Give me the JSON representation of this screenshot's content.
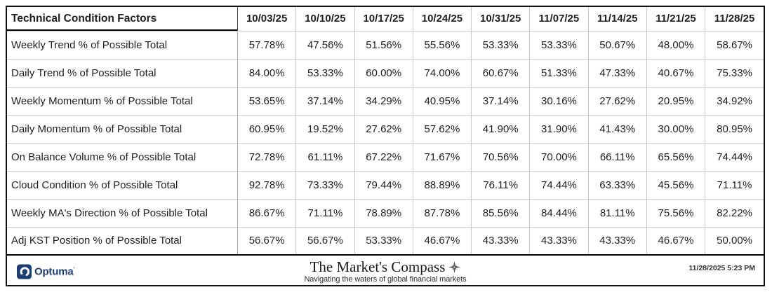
{
  "colors": {
    "frame_border": "#111111",
    "grid_line": "#c9c9c9",
    "header_rule": "#000000",
    "text": "#1f1f1f",
    "brand_navy": "#1c3e70",
    "compass_gray": "#555555"
  },
  "chart_data": {
    "type": "table",
    "title": "Technical Condition Factors",
    "columns": [
      "10/03/25",
      "10/10/25",
      "10/17/25",
      "10/24/25",
      "10/31/25",
      "11/07/25",
      "11/14/25",
      "11/21/25",
      "11/28/25"
    ],
    "rows": [
      {
        "label": "Weekly Trend % of Possible Total",
        "values": [
          "57.78%",
          "47.56%",
          "51.56%",
          "55.56%",
          "53.33%",
          "53.33%",
          "50.67%",
          "48.00%",
          "58.67%"
        ]
      },
      {
        "label": "Daily Trend % of Possible Total",
        "values": [
          "84.00%",
          "53.33%",
          "60.00%",
          "74.00%",
          "60.67%",
          "51.33%",
          "47.33%",
          "40.67%",
          "75.33%"
        ]
      },
      {
        "label": "Weekly Momentum % of Possible Total",
        "values": [
          "53.65%",
          "37.14%",
          "34.29%",
          "40.95%",
          "37.14%",
          "30.16%",
          "27.62%",
          "20.95%",
          "34.92%"
        ]
      },
      {
        "label": "Daily Momentum % of Possible Total",
        "values": [
          "60.95%",
          "19.52%",
          "27.62%",
          "57.62%",
          "41.90%",
          "31.90%",
          "41.43%",
          "30.00%",
          "80.95%"
        ]
      },
      {
        "label": "On Balance Volume % of Possible Total",
        "values": [
          "72.78%",
          "61.11%",
          "67.22%",
          "71.67%",
          "70.56%",
          "70.00%",
          "66.11%",
          "65.56%",
          "74.44%"
        ]
      },
      {
        "label": "Cloud Condition % of Possible Total",
        "values": [
          "92.78%",
          "73.33%",
          "79.44%",
          "88.89%",
          "76.11%",
          "74.44%",
          "63.33%",
          "45.56%",
          "71.11%"
        ]
      },
      {
        "label": "Weekly MA's Direction % of Possible Total",
        "values": [
          "86.67%",
          "71.11%",
          "78.89%",
          "87.78%",
          "85.56%",
          "84.44%",
          "81.11%",
          "75.56%",
          "82.22%"
        ]
      },
      {
        "label": "Adj KST Position % of Possible Total",
        "values": [
          "56.67%",
          "56.67%",
          "53.33%",
          "46.67%",
          "43.33%",
          "43.33%",
          "43.33%",
          "46.67%",
          "50.00%"
        ]
      }
    ]
  },
  "footer": {
    "optuma_label": "Optuma",
    "brand_title": "The Market's Compass",
    "brand_tagline": "Navigating the waters of global financial markets",
    "timestamp": "11/28/2025 5:23 PM"
  }
}
